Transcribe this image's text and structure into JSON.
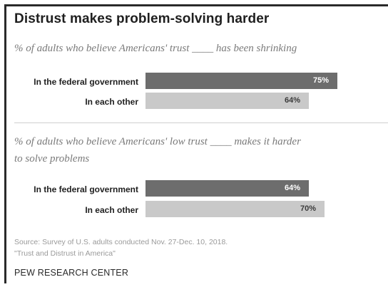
{
  "chart_data": {
    "type": "bar",
    "title": "Distrust makes problem-solving harder",
    "orientation": "horizontal",
    "xlim": [
      0,
      100
    ],
    "panels": [
      {
        "subtitle": "% of adults who believe Americans' trust ____ has been shrinking",
        "categories": [
          "In the federal government",
          "In each other"
        ],
        "values": [
          75,
          64
        ],
        "value_labels": [
          "75%",
          "64%"
        ]
      },
      {
        "subtitle_line1": "% of adults who believe Americans' low trust ____ makes it harder",
        "subtitle_line2": "to solve problems",
        "categories": [
          "In the federal government",
          "In each other"
        ],
        "values": [
          64,
          70
        ],
        "value_labels": [
          "64%",
          "70%"
        ]
      }
    ],
    "colors": {
      "government": "#6d6d6d",
      "each_other": "#c9c9c9"
    },
    "source_line1": "Source: Survey of U.S. adults conducted Nov. 27-Dec. 10, 2018.",
    "source_line2": "\"Trust and Distrust in America\"",
    "brand": "PEW RESEARCH CENTER"
  }
}
